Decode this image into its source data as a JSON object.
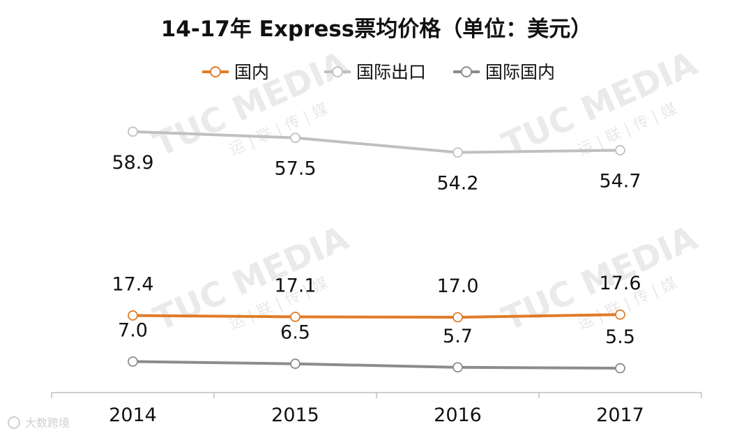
{
  "watermark": {
    "brand": "TUC MEDIA",
    "sub": "运 | 联 | 传 | 媒"
  },
  "credit": "大数跨境",
  "chart_data": {
    "type": "line",
    "title": "14-17年 Express票均价格（单位：美元）",
    "categories": [
      "2014",
      "2015",
      "2016",
      "2017"
    ],
    "series": [
      {
        "name": "国内",
        "color": "#e07b28",
        "values": [
          17.4,
          17.1,
          17.0,
          17.6
        ],
        "labels": [
          "17.4",
          "17.1",
          "17.0",
          "17.6"
        ]
      },
      {
        "name": "国际出口",
        "color": "#c0c0c0",
        "values": [
          58.9,
          57.5,
          54.2,
          54.7
        ],
        "labels": [
          "58.9",
          "57.5",
          "54.2",
          "54.7"
        ]
      },
      {
        "name": "国际国内",
        "color": "#8c8c8c",
        "values": [
          7.0,
          6.5,
          5.7,
          5.5
        ],
        "labels": [
          "7.0",
          "6.5",
          "5.7",
          "5.5"
        ]
      }
    ],
    "xlabel": "",
    "ylabel": "",
    "ylim": [
      0,
      65
    ],
    "grid": false,
    "legend": "top"
  }
}
